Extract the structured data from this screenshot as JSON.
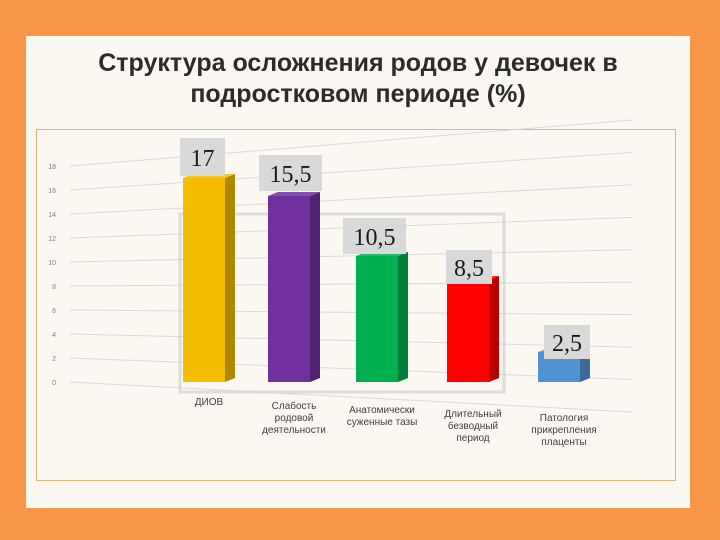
{
  "title_line1": "Структура осложнения родов у девочек в",
  "title_line2": "подростковом периоде (%)",
  "chart_data": {
    "type": "bar",
    "title": "Структура осложнения родов у девочек в подростковом периоде (%)",
    "categories": [
      [
        "ДИОВ"
      ],
      [
        "Слабость",
        "родовой",
        "деятельности"
      ],
      [
        "Анатомически",
        "суженные тазы"
      ],
      [
        "Длительный",
        "безводный",
        "период"
      ],
      [
        "Патология",
        "прикрепления",
        "плаценты"
      ]
    ],
    "values": [
      17,
      15.5,
      10.5,
      8.5,
      2.5
    ],
    "value_labels": [
      "17",
      "15,5",
      "10,5",
      "8,5",
      "2,5"
    ],
    "colors": [
      "#f5bd00",
      "#7030a0",
      "#00b050",
      "#ff0000",
      "#4f93d4"
    ],
    "y_ticks": [
      "0",
      "2",
      "4",
      "6",
      "8",
      "10",
      "12",
      "14",
      "16",
      "18"
    ],
    "ylim": [
      0,
      18
    ],
    "grid": true,
    "legend": "none"
  }
}
